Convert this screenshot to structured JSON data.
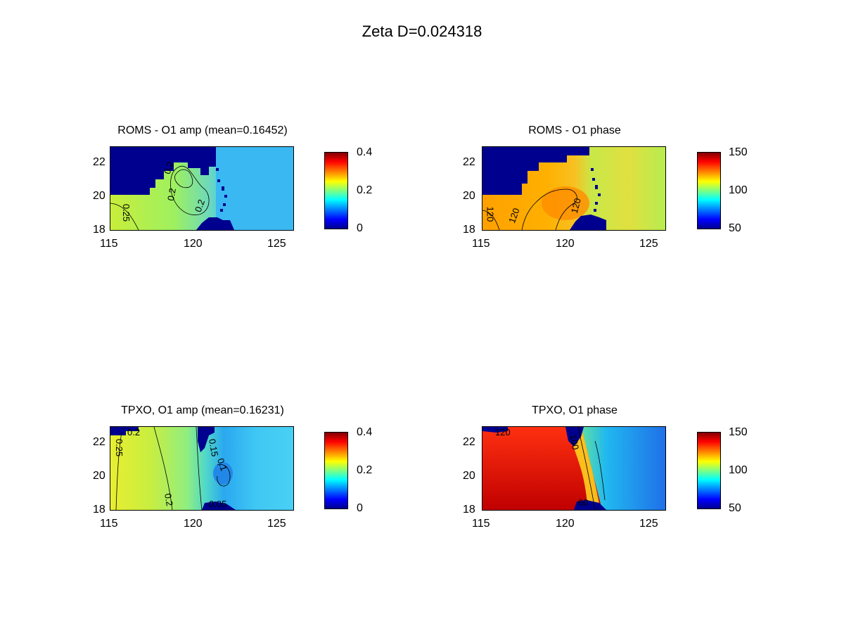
{
  "figure": {
    "title": "Zeta    D=0.024318"
  },
  "chart_data": [
    {
      "type": "heatmap",
      "id": "roms-amp",
      "title": "ROMS - O1 amp (mean=0.16452)",
      "xlim": [
        115,
        126
      ],
      "ylim": [
        18,
        23
      ],
      "xticks": [
        "115",
        "120",
        "125"
      ],
      "yticks": [
        "18",
        "20",
        "22"
      ],
      "colorbar": {
        "range": [
          0,
          0.4
        ],
        "ticks": [
          "0",
          "0.2",
          "0.4"
        ]
      },
      "contour_labels": [
        "0.25",
        "0.2",
        "0.2",
        "0.2",
        "0.2"
      ],
      "land_color": "#00008f"
    },
    {
      "type": "heatmap",
      "id": "roms-phase",
      "title": "ROMS - O1 phase",
      "xlim": [
        115,
        126
      ],
      "ylim": [
        18,
        23
      ],
      "xticks": [
        "115",
        "120",
        "125"
      ],
      "yticks": [
        "18",
        "20",
        "22"
      ],
      "colorbar": {
        "range": [
          50,
          150
        ],
        "ticks": [
          "50",
          "100",
          "150"
        ]
      },
      "contour_labels": [
        "120",
        "120",
        "120"
      ],
      "land_color": "#00008f"
    },
    {
      "type": "heatmap",
      "id": "tpxo-amp",
      "title": "TPXO, O1 amp (mean=0.16231)",
      "xlim": [
        115,
        126
      ],
      "ylim": [
        18,
        23
      ],
      "xticks": [
        "115",
        "120",
        "125"
      ],
      "yticks": [
        "18",
        "20",
        "22"
      ],
      "colorbar": {
        "range": [
          0,
          0.4
        ],
        "ticks": [
          "0",
          "0.2",
          "0.4"
        ]
      },
      "contour_labels": [
        "0.25",
        "0.2",
        "0.2",
        "0.15",
        "0.1",
        "0.05",
        "0.05"
      ],
      "land_color": "#00008f"
    },
    {
      "type": "heatmap",
      "id": "tpxo-phase",
      "title": "TPXO, O1 phase",
      "xlim": [
        115,
        126
      ],
      "ylim": [
        18,
        23
      ],
      "xticks": [
        "115",
        "120",
        "125"
      ],
      "yticks": [
        "18",
        "20",
        "22"
      ],
      "colorbar": {
        "range": [
          50,
          150
        ],
        "ticks": [
          "50",
          "100",
          "150"
        ]
      },
      "contour_labels": [
        "120",
        "100",
        "60",
        "100"
      ],
      "land_color": "#00008f"
    }
  ]
}
